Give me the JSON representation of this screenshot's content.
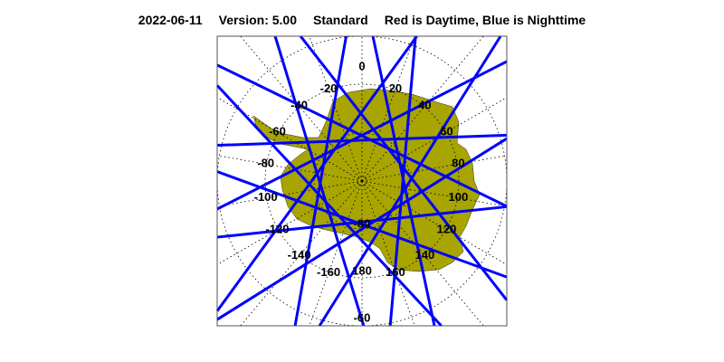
{
  "title": {
    "date": "2022-06-11",
    "version": "Version: 5.00",
    "product": "Standard",
    "legend_text": "Red is Daytime, Blue is Nighttime"
  },
  "map": {
    "projection": "south polar stereographic",
    "region": "Antarctica",
    "colors": {
      "land": "#a8a400",
      "day_track": "#ff0000",
      "night_track": "#0000ff",
      "grid": "#000000"
    },
    "longitude_labels": [
      "0",
      "20",
      "40",
      "60",
      "80",
      "100",
      "120",
      "140",
      "160",
      "180",
      "-160",
      "-140",
      "-120",
      "-100",
      "-80",
      "-60",
      "-40",
      "-20"
    ],
    "latitude_labels": [
      "-80",
      "-60"
    ]
  }
}
